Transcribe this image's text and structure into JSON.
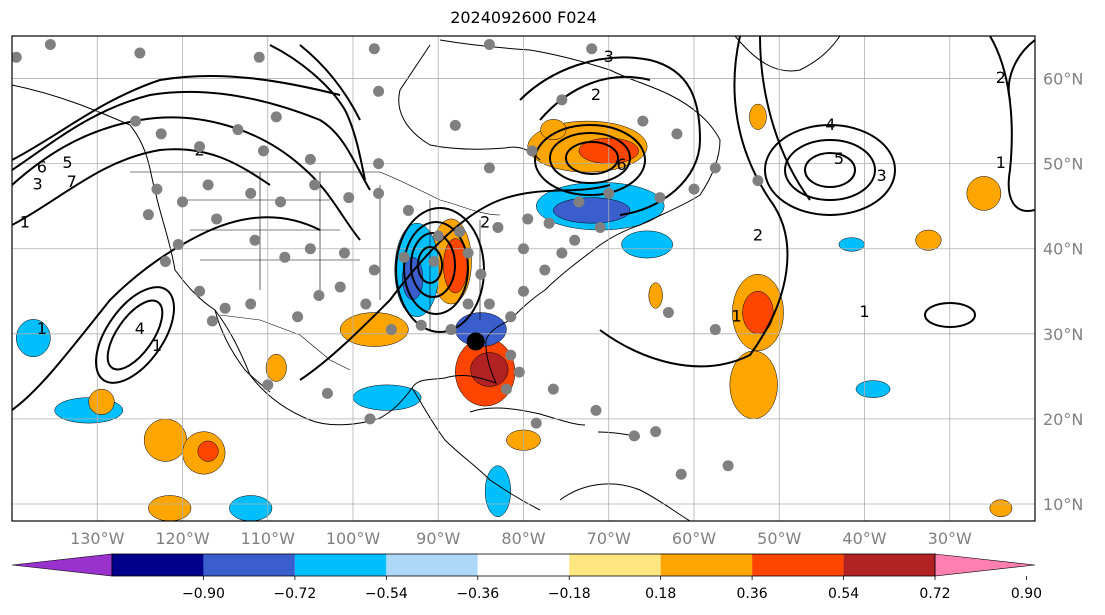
{
  "title": "2024092600 F024",
  "map": {
    "lon_range": [
      -140,
      -20
    ],
    "lat_range": [
      8,
      65
    ],
    "lon_ticks": [
      {
        "lon": -130,
        "label": "130°W"
      },
      {
        "lon": -120,
        "label": "120°W"
      },
      {
        "lon": -110,
        "label": "110°W"
      },
      {
        "lon": -100,
        "label": "100°W"
      },
      {
        "lon": -90,
        "label": "90°W"
      },
      {
        "lon": -80,
        "label": "80°W"
      },
      {
        "lon": -70,
        "label": "70°W"
      },
      {
        "lon": -60,
        "label": "60°W"
      },
      {
        "lon": -50,
        "label": "50°W"
      },
      {
        "lon": -40,
        "label": "40°W"
      },
      {
        "lon": -30,
        "label": "30°W"
      }
    ],
    "lat_ticks": [
      {
        "lat": 10,
        "label": "10°N"
      },
      {
        "lat": 20,
        "label": "20°N"
      },
      {
        "lat": 30,
        "label": "30°N"
      },
      {
        "lat": 40,
        "label": "40°N"
      },
      {
        "lat": 50,
        "label": "50°N"
      },
      {
        "lat": 60,
        "label": "60°N"
      }
    ],
    "contour_labels": [
      {
        "text": "6",
        "lon": -136.5,
        "lat": 49.5
      },
      {
        "text": "5",
        "lon": -133.5,
        "lat": 50.0
      },
      {
        "text": "3",
        "lon": -137.0,
        "lat": 47.5
      },
      {
        "text": "7",
        "lon": -133.0,
        "lat": 47.8
      },
      {
        "text": "1",
        "lon": -138.5,
        "lat": 43.0
      },
      {
        "text": "2",
        "lon": -118.0,
        "lat": 51.5
      },
      {
        "text": "1",
        "lon": -136.5,
        "lat": 30.5
      },
      {
        "text": "4",
        "lon": -125.0,
        "lat": 30.5
      },
      {
        "text": "1",
        "lon": -123.0,
        "lat": 28.5
      },
      {
        "text": "2",
        "lon": -84.5,
        "lat": 43.0
      },
      {
        "text": "6",
        "lon": -68.5,
        "lat": 49.8
      },
      {
        "text": "3",
        "lon": -70.0,
        "lat": 62.5
      },
      {
        "text": "2",
        "lon": -71.5,
        "lat": 58.0
      },
      {
        "text": "4",
        "lon": -44.0,
        "lat": 54.5
      },
      {
        "text": "5",
        "lon": -43.0,
        "lat": 50.5
      },
      {
        "text": "3",
        "lon": -38.0,
        "lat": 48.5
      },
      {
        "text": "2",
        "lon": -52.5,
        "lat": 41.5
      },
      {
        "text": "1",
        "lon": -40.0,
        "lat": 32.5
      },
      {
        "text": "1",
        "lon": -55.0,
        "lat": 32.0
      },
      {
        "text": "2",
        "lon": -24.0,
        "lat": 60.0
      },
      {
        "text": "1",
        "lon": -24.0,
        "lat": 50.0
      }
    ],
    "storm_center": {
      "lon": -85.6,
      "lat": 29.1
    },
    "stations": [
      {
        "lon": -139.5,
        "lat": 62.5
      },
      {
        "lon": -135.5,
        "lat": 64.0
      },
      {
        "lon": -125.0,
        "lat": 63.0
      },
      {
        "lon": -111.0,
        "lat": 62.5
      },
      {
        "lon": -97.5,
        "lat": 63.5
      },
      {
        "lon": -84.0,
        "lat": 64.0
      },
      {
        "lon": -72.0,
        "lat": 63.5
      },
      {
        "lon": -97.0,
        "lat": 58.5
      },
      {
        "lon": -109.0,
        "lat": 55.5
      },
      {
        "lon": -113.5,
        "lat": 54.0
      },
      {
        "lon": -122.5,
        "lat": 53.5
      },
      {
        "lon": -125.5,
        "lat": 55.0
      },
      {
        "lon": -118.0,
        "lat": 52.0
      },
      {
        "lon": -110.5,
        "lat": 51.5
      },
      {
        "lon": -105.0,
        "lat": 50.5
      },
      {
        "lon": -97.0,
        "lat": 50.0
      },
      {
        "lon": -84.0,
        "lat": 49.5
      },
      {
        "lon": -79.0,
        "lat": 51.5
      },
      {
        "lon": -88.0,
        "lat": 54.5
      },
      {
        "lon": -75.5,
        "lat": 57.5
      },
      {
        "lon": -66.0,
        "lat": 55.0
      },
      {
        "lon": -62.0,
        "lat": 53.5
      },
      {
        "lon": -57.5,
        "lat": 49.5
      },
      {
        "lon": -52.5,
        "lat": 48.0
      },
      {
        "lon": -60.0,
        "lat": 47.0
      },
      {
        "lon": -64.0,
        "lat": 46.0
      },
      {
        "lon": -70.0,
        "lat": 46.5
      },
      {
        "lon": -73.5,
        "lat": 45.5
      },
      {
        "lon": -79.5,
        "lat": 43.5
      },
      {
        "lon": -83.0,
        "lat": 42.5
      },
      {
        "lon": -87.5,
        "lat": 42.0
      },
      {
        "lon": -90.0,
        "lat": 41.5
      },
      {
        "lon": -94.0,
        "lat": 39.0
      },
      {
        "lon": -97.5,
        "lat": 37.5
      },
      {
        "lon": -101.0,
        "lat": 39.5
      },
      {
        "lon": -105.0,
        "lat": 40.0
      },
      {
        "lon": -108.0,
        "lat": 39.0
      },
      {
        "lon": -111.5,
        "lat": 41.0
      },
      {
        "lon": -116.0,
        "lat": 43.5
      },
      {
        "lon": -120.0,
        "lat": 45.5
      },
      {
        "lon": -123.0,
        "lat": 47.0
      },
      {
        "lon": -124.0,
        "lat": 44.0
      },
      {
        "lon": -122.0,
        "lat": 38.5
      },
      {
        "lon": -118.0,
        "lat": 35.0
      },
      {
        "lon": -115.0,
        "lat": 33.0
      },
      {
        "lon": -112.0,
        "lat": 33.5
      },
      {
        "lon": -106.5,
        "lat": 32.0
      },
      {
        "lon": -104.0,
        "lat": 34.5
      },
      {
        "lon": -101.5,
        "lat": 35.5
      },
      {
        "lon": -98.5,
        "lat": 33.5
      },
      {
        "lon": -95.5,
        "lat": 30.5
      },
      {
        "lon": -92.0,
        "lat": 31.0
      },
      {
        "lon": -88.5,
        "lat": 30.5
      },
      {
        "lon": -86.5,
        "lat": 33.5
      },
      {
        "lon": -84.0,
        "lat": 33.5
      },
      {
        "lon": -81.5,
        "lat": 32.0
      },
      {
        "lon": -80.0,
        "lat": 35.0
      },
      {
        "lon": -77.5,
        "lat": 37.5
      },
      {
        "lon": -75.5,
        "lat": 39.5
      },
      {
        "lon": -74.0,
        "lat": 41.0
      },
      {
        "lon": -71.0,
        "lat": 42.5
      },
      {
        "lon": -85.0,
        "lat": 37.0
      },
      {
        "lon": -86.5,
        "lat": 39.5
      },
      {
        "lon": -90.5,
        "lat": 38.5
      },
      {
        "lon": -93.5,
        "lat": 44.5
      },
      {
        "lon": -97.0,
        "lat": 46.5
      },
      {
        "lon": -100.5,
        "lat": 46.0
      },
      {
        "lon": -104.5,
        "lat": 47.5
      },
      {
        "lon": -108.5,
        "lat": 45.5
      },
      {
        "lon": -112.0,
        "lat": 46.5
      },
      {
        "lon": -117.0,
        "lat": 47.5
      },
      {
        "lon": -120.5,
        "lat": 40.5
      },
      {
        "lon": -80.5,
        "lat": 25.5
      },
      {
        "lon": -81.5,
        "lat": 27.5
      },
      {
        "lon": -82.0,
        "lat": 23.5
      },
      {
        "lon": -76.5,
        "lat": 23.5
      },
      {
        "lon": -71.5,
        "lat": 21.0
      },
      {
        "lon": -67.0,
        "lat": 18.0
      },
      {
        "lon": -64.5,
        "lat": 18.5
      },
      {
        "lon": -61.5,
        "lat": 13.5
      },
      {
        "lon": -56.0,
        "lat": 14.5
      },
      {
        "lon": -63.0,
        "lat": 32.5
      },
      {
        "lon": -57.5,
        "lat": 30.5
      },
      {
        "lon": -78.5,
        "lat": 19.5
      },
      {
        "lon": -98.0,
        "lat": 20.0
      },
      {
        "lon": -103.0,
        "lat": 23.0
      },
      {
        "lon": -110.0,
        "lat": 24.0
      },
      {
        "lon": -116.5,
        "lat": 31.5
      },
      {
        "lon": -80.0,
        "lat": 40.0
      },
      {
        "lon": -77.0,
        "lat": 43.0
      }
    ]
  },
  "colorbar": {
    "ticks": [
      "−0.90",
      "−0.72",
      "−0.54",
      "−0.36",
      "−0.18",
      "0.18",
      "0.36",
      "0.54",
      "0.72",
      "0.90"
    ],
    "colors": [
      "#9932cc",
      "#00008b",
      "#3a5fcd",
      "#00bfff",
      "#add8f7",
      "#ffffff",
      "#ffe680",
      "#ffa500",
      "#ff4500",
      "#b22222",
      "#ff7fb0"
    ]
  },
  "shading": [
    {
      "lon": -88.5,
      "lat": 38.5,
      "rx": 2.4,
      "ry": 5.0,
      "color": "#ffa500",
      "level": 0.45
    },
    {
      "lon": -88.0,
      "lat": 38.0,
      "rx": 1.4,
      "ry": 3.2,
      "color": "#ff4500",
      "level": 0.65
    },
    {
      "lon": -92.5,
      "lat": 37.5,
      "rx": 2.6,
      "ry": 5.5,
      "color": "#00bfff",
      "level": -0.45
    },
    {
      "lon": -93.0,
      "lat": 36.5,
      "rx": 1.2,
      "ry": 2.5,
      "color": "#3a5fcd",
      "level": -0.6
    },
    {
      "lon": -71.0,
      "lat": 45.0,
      "rx": 7.5,
      "ry": 2.8,
      "color": "#00bfff",
      "level": -0.45
    },
    {
      "lon": -72.0,
      "lat": 44.5,
      "rx": 4.5,
      "ry": 1.5,
      "color": "#3a5fcd",
      "level": -0.6
    },
    {
      "lon": -72.5,
      "lat": 52.0,
      "rx": 7.0,
      "ry": 3.0,
      "color": "#ffa500",
      "level": 0.45
    },
    {
      "lon": -70.0,
      "lat": 51.5,
      "rx": 3.5,
      "ry": 1.5,
      "color": "#ff4500",
      "level": 0.65
    },
    {
      "lon": -84.5,
      "lat": 25.5,
      "rx": 3.5,
      "ry": 4.0,
      "color": "#ff4500",
      "level": 0.65
    },
    {
      "lon": -84.0,
      "lat": 25.8,
      "rx": 2.2,
      "ry": 2.0,
      "color": "#b22222",
      "level": 0.8
    },
    {
      "lon": -85.0,
      "lat": 30.5,
      "rx": 3.0,
      "ry": 2.0,
      "color": "#3a5fcd",
      "level": -0.6
    },
    {
      "lon": -52.5,
      "lat": 32.5,
      "rx": 3.0,
      "ry": 4.5,
      "color": "#ffa500",
      "level": 0.45
    },
    {
      "lon": -52.5,
      "lat": 32.5,
      "rx": 1.8,
      "ry": 2.5,
      "color": "#ff4500",
      "level": 0.65
    },
    {
      "lon": -53.0,
      "lat": 24.0,
      "rx": 2.8,
      "ry": 4.0,
      "color": "#ffa500",
      "level": 0.45
    },
    {
      "lon": -97.5,
      "lat": 30.5,
      "rx": 4.0,
      "ry": 2.0,
      "color": "#ffa500",
      "level": 0.45
    },
    {
      "lon": -96.0,
      "lat": 22.5,
      "rx": 4.0,
      "ry": 1.5,
      "color": "#00bfff",
      "level": -0.45
    },
    {
      "lon": -122.0,
      "lat": 17.5,
      "rx": 2.5,
      "ry": 2.5,
      "color": "#ffa500",
      "level": 0.45
    },
    {
      "lon": -117.5,
      "lat": 16.0,
      "rx": 2.5,
      "ry": 2.5,
      "color": "#ffa500",
      "level": 0.45
    },
    {
      "lon": -117.0,
      "lat": 16.2,
      "rx": 1.2,
      "ry": 1.2,
      "color": "#ff4500",
      "level": 0.65
    },
    {
      "lon": -121.5,
      "lat": 9.5,
      "rx": 2.5,
      "ry": 1.5,
      "color": "#ffa500",
      "level": 0.45
    },
    {
      "lon": -131.0,
      "lat": 21.0,
      "rx": 4.0,
      "ry": 1.5,
      "color": "#00bfff",
      "level": -0.45
    },
    {
      "lon": -137.5,
      "lat": 29.5,
      "rx": 2.0,
      "ry": 2.2,
      "color": "#00bfff",
      "level": -0.45
    },
    {
      "lon": -129.5,
      "lat": 22.0,
      "rx": 1.5,
      "ry": 1.5,
      "color": "#ffa500",
      "level": 0.45
    },
    {
      "lon": -52.5,
      "lat": 55.5,
      "rx": 1.0,
      "ry": 1.5,
      "color": "#ffa500",
      "level": 0.45
    },
    {
      "lon": -65.5,
      "lat": 40.5,
      "rx": 3.0,
      "ry": 1.6,
      "color": "#00bfff",
      "level": -0.45
    },
    {
      "lon": -26.0,
      "lat": 46.5,
      "rx": 2.0,
      "ry": 2.0,
      "color": "#ffa500",
      "level": 0.45
    },
    {
      "lon": -76.5,
      "lat": 54.0,
      "rx": 1.5,
      "ry": 1.2,
      "color": "#ffa500",
      "level": 0.45
    },
    {
      "lon": -109.0,
      "lat": 26.0,
      "rx": 1.2,
      "ry": 1.6,
      "color": "#ffa500",
      "level": 0.45
    },
    {
      "lon": -80.0,
      "lat": 17.5,
      "rx": 2.0,
      "ry": 1.2,
      "color": "#ffa500",
      "level": 0.45
    },
    {
      "lon": -83.0,
      "lat": 11.5,
      "rx": 1.5,
      "ry": 3.0,
      "color": "#00bfff",
      "level": -0.45
    },
    {
      "lon": -112.0,
      "lat": 9.5,
      "rx": 2.5,
      "ry": 1.5,
      "color": "#00bfff",
      "level": -0.45
    },
    {
      "lon": -39.0,
      "lat": 23.5,
      "rx": 2.0,
      "ry": 1.0,
      "color": "#00bfff",
      "level": -0.45
    },
    {
      "lon": -41.5,
      "lat": 40.5,
      "rx": 1.5,
      "ry": 0.8,
      "color": "#00bfff",
      "level": -0.45
    },
    {
      "lon": -32.5,
      "lat": 41.0,
      "rx": 1.5,
      "ry": 1.2,
      "color": "#ffa500",
      "level": 0.45
    },
    {
      "lon": -64.5,
      "lat": 34.5,
      "rx": 0.8,
      "ry": 1.5,
      "color": "#ffa500",
      "level": 0.45
    },
    {
      "lon": -24.0,
      "lat": 9.5,
      "rx": 1.3,
      "ry": 1.0,
      "color": "#ffa500",
      "level": 0.45
    }
  ]
}
